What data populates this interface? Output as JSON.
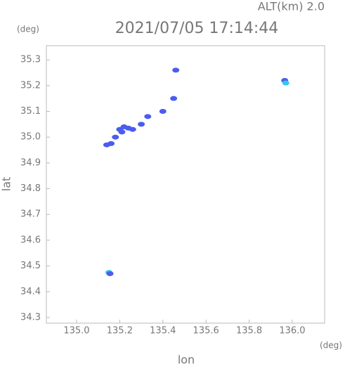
{
  "chart_data": {
    "type": "scatter",
    "subtitle": "ALT(km) 2.0",
    "title": "2021/07/05 17:14:44",
    "y_unit": "(deg)",
    "x_unit": "(deg)",
    "xlabel": "lon",
    "ylabel": "lat",
    "x": [
      135.14,
      135.16,
      135.18,
      135.2,
      135.22,
      135.24,
      135.21,
      135.26,
      135.3,
      135.33,
      135.4,
      135.45,
      135.46,
      135.965,
      135.97,
      135.15,
      135.155
    ],
    "values": [
      34.97,
      34.975,
      35.0,
      35.03,
      35.04,
      35.035,
      35.02,
      35.03,
      35.05,
      35.08,
      35.1,
      35.15,
      35.26,
      35.22,
      35.21,
      34.475,
      34.47
    ],
    "colors": [
      "#4a5cf0",
      "#4a5cf0",
      "#4a5cf0",
      "#4a5cf0",
      "#4a5cf0",
      "#4a5cf0",
      "#4a5cf0",
      "#4a5cf0",
      "#4a5cf0",
      "#4a5cf0",
      "#4a5cf0",
      "#4a5cf0",
      "#4a5cf0",
      "#4a5cf0",
      "#34c8f0",
      "#34c8f0",
      "#4a5cf0"
    ],
    "xlim": [
      134.86,
      136.15
    ],
    "ylim": [
      34.278,
      35.355
    ],
    "xticks": [
      {
        "value": 135.0,
        "label": "135.0"
      },
      135.2,
      135.4,
      135.6,
      135.8,
      {
        "value": 136.0,
        "label": "136.0"
      }
    ],
    "yticks": [
      34.3,
      34.4,
      34.5,
      34.6,
      34.7,
      34.8,
      34.9,
      {
        "value": 35.0,
        "label": "35.0"
      },
      35.1,
      35.2,
      35.3
    ],
    "grid": false
  }
}
